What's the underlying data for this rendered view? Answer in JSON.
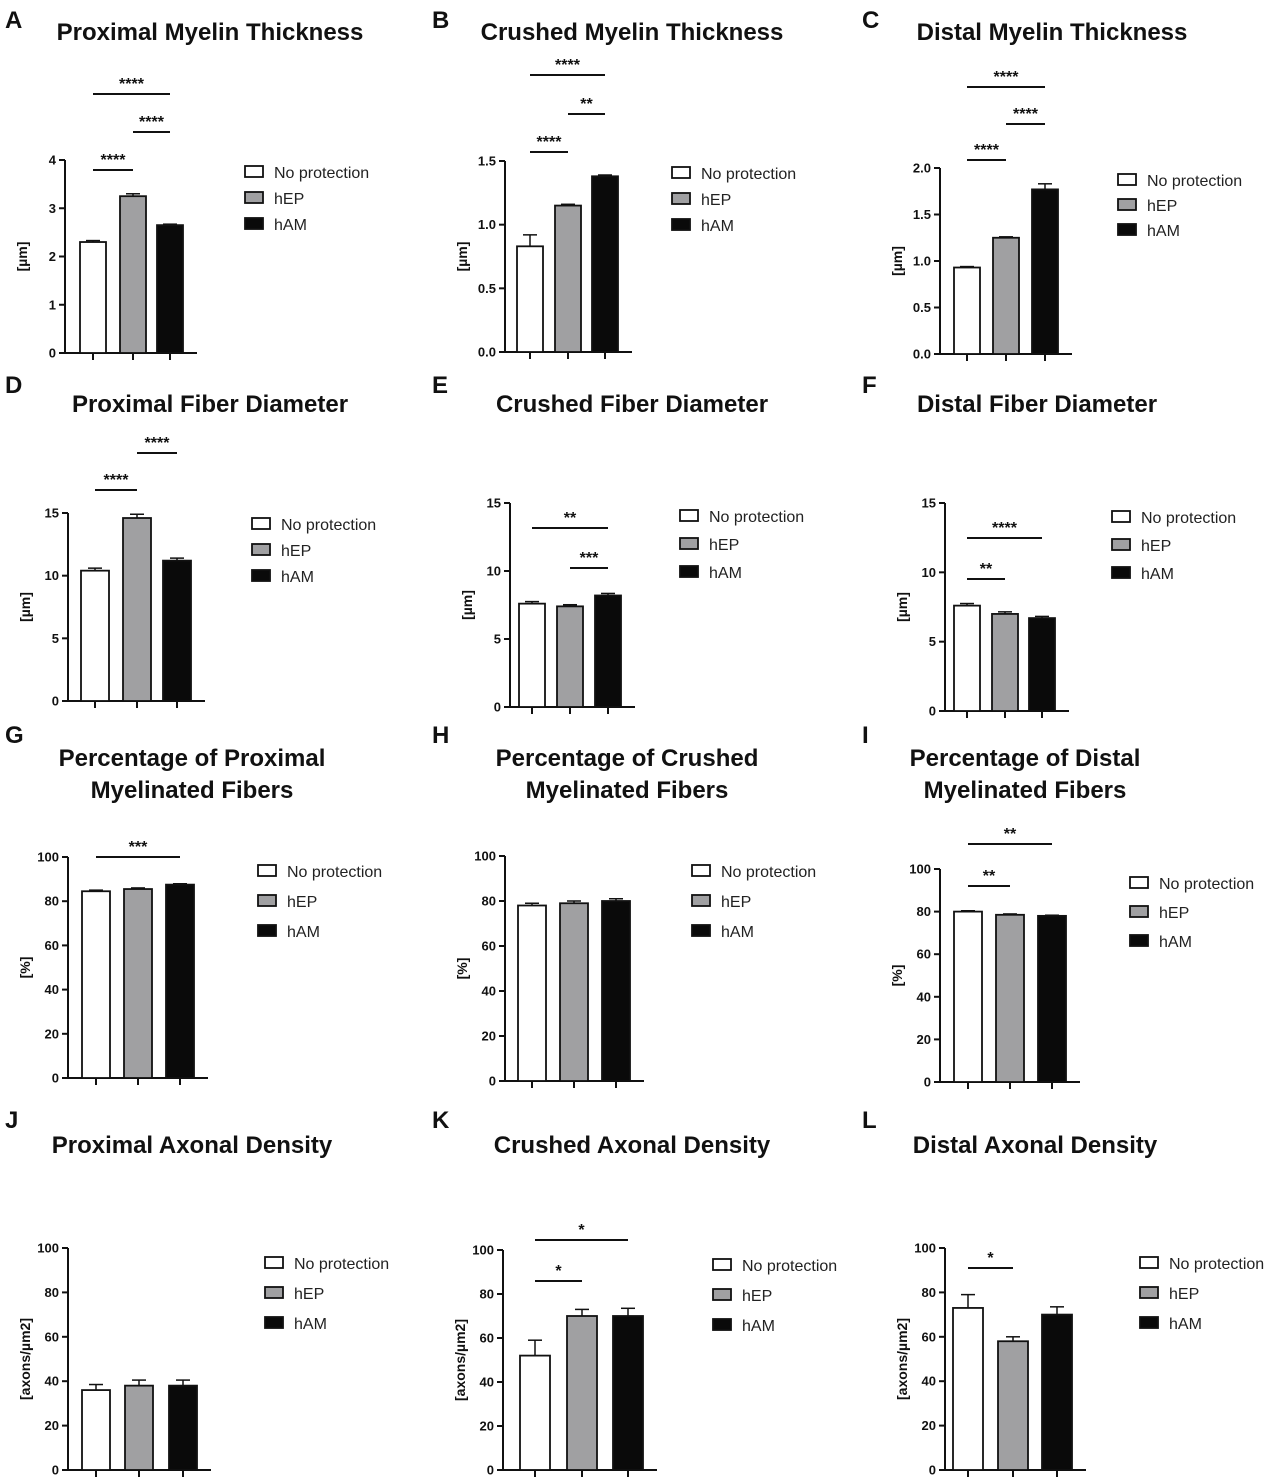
{
  "chart_data": [
    {
      "letter": "A",
      "type": "bar",
      "title": [
        "Proximal Myelin Thickness"
      ],
      "ylabel": "[µm]",
      "ylim": [
        0,
        4
      ],
      "yticks": [
        "0",
        "1",
        "2",
        "3",
        "4"
      ],
      "categories": [
        "No protection",
        "hEP",
        "hAM"
      ],
      "values": [
        2.3,
        3.25,
        2.65
      ],
      "errors": [
        0.03,
        0.05,
        0.02
      ],
      "significance": [
        [
          0,
          1,
          "****"
        ],
        [
          1,
          2,
          "****"
        ],
        [
          0,
          2,
          "****"
        ]
      ]
    },
    {
      "letter": "B",
      "type": "bar",
      "title": [
        "Crushed Myelin Thickness"
      ],
      "ylabel": "[µm]",
      "ylim": [
        0,
        1.5
      ],
      "yticks": [
        "0.0",
        "0.5",
        "1.0",
        "1.5"
      ],
      "categories": [
        "No protection",
        "hEP",
        "hAM"
      ],
      "values": [
        0.83,
        1.15,
        1.38
      ],
      "errors": [
        0.09,
        0.01,
        0.01
      ],
      "significance": [
        [
          0,
          1,
          "****"
        ],
        [
          1,
          2,
          "**"
        ],
        [
          0,
          2,
          "****"
        ]
      ]
    },
    {
      "letter": "C",
      "type": "bar",
      "title": [
        "Distal Myelin Thickness"
      ],
      "ylabel": "[µm]",
      "ylim": [
        0,
        2
      ],
      "yticks": [
        "0.0",
        "0.5",
        "1.0",
        "1.5",
        "2.0"
      ],
      "categories": [
        "No protection",
        "hEP",
        "hAM"
      ],
      "values": [
        0.93,
        1.25,
        1.77
      ],
      "errors": [
        0.01,
        0.01,
        0.06
      ],
      "significance": [
        [
          0,
          1,
          "****"
        ],
        [
          1,
          2,
          "****"
        ],
        [
          0,
          2,
          "****"
        ]
      ]
    },
    {
      "letter": "D",
      "type": "bar",
      "title": [
        "Proximal Fiber Diameter"
      ],
      "ylabel": "[µm]",
      "ylim": [
        0,
        15
      ],
      "yticks": [
        "0",
        "5",
        "10",
        "15"
      ],
      "categories": [
        "No protection",
        "hEP",
        "hAM"
      ],
      "values": [
        10.4,
        14.6,
        11.2
      ],
      "errors": [
        0.2,
        0.3,
        0.2
      ],
      "significance": [
        [
          0,
          1,
          "****"
        ],
        [
          1,
          2,
          "****"
        ]
      ]
    },
    {
      "letter": "E",
      "type": "bar",
      "title": [
        "Crushed Fiber Diameter"
      ],
      "ylabel": "[µm]",
      "ylim": [
        0,
        15
      ],
      "yticks": [
        "0",
        "5",
        "10",
        "15"
      ],
      "categories": [
        "No protection",
        "hEP",
        "hAM"
      ],
      "values": [
        7.6,
        7.4,
        8.2
      ],
      "errors": [
        0.15,
        0.12,
        0.15
      ],
      "significance": [
        [
          0,
          2,
          "**"
        ],
        [
          1,
          2,
          "***"
        ]
      ]
    },
    {
      "letter": "F",
      "type": "bar",
      "title": [
        "Distal Fiber Diameter"
      ],
      "ylabel": "[µm]",
      "ylim": [
        0,
        15
      ],
      "yticks": [
        "0",
        "5",
        "10",
        "15"
      ],
      "categories": [
        "No protection",
        "hEP",
        "hAM"
      ],
      "values": [
        7.6,
        7.0,
        6.7
      ],
      "errors": [
        0.15,
        0.15,
        0.12
      ],
      "significance": [
        [
          0,
          1,
          "**"
        ],
        [
          0,
          2,
          "****"
        ]
      ]
    },
    {
      "letter": "G",
      "type": "bar",
      "title": [
        "Percentage of Proximal",
        "Myelinated Fibers"
      ],
      "ylabel": "[%]",
      "ylim": [
        0,
        100
      ],
      "yticks": [
        "0",
        "20",
        "40",
        "60",
        "80",
        "100"
      ],
      "categories": [
        "No protection",
        "hEP",
        "hAM"
      ],
      "values": [
        84.5,
        85.5,
        87.5
      ],
      "errors": [
        0.5,
        0.5,
        0.4
      ],
      "significance": [
        [
          0,
          2,
          "***"
        ]
      ]
    },
    {
      "letter": "H",
      "type": "bar",
      "title": [
        "Percentage of Crushed",
        "Myelinated Fibers"
      ],
      "ylabel": "[%]",
      "ylim": [
        0,
        100
      ],
      "yticks": [
        "0",
        "20",
        "40",
        "60",
        "80",
        "100"
      ],
      "categories": [
        "No protection",
        "hEP",
        "hAM"
      ],
      "values": [
        78,
        79,
        80
      ],
      "errors": [
        1,
        1,
        1
      ],
      "significance": []
    },
    {
      "letter": "I",
      "type": "bar",
      "title": [
        "Percentage of Distal",
        "Myelinated Fibers"
      ],
      "ylabel": "[%]",
      "ylim": [
        0,
        100
      ],
      "yticks": [
        "0",
        "20",
        "40",
        "60",
        "80",
        "100"
      ],
      "categories": [
        "No protection",
        "hEP",
        "hAM"
      ],
      "values": [
        80,
        78.5,
        78
      ],
      "errors": [
        0.4,
        0.4,
        0.3
      ],
      "significance": [
        [
          0,
          1,
          "**"
        ],
        [
          0,
          2,
          "**"
        ]
      ]
    },
    {
      "letter": "J",
      "type": "bar",
      "title": [
        "Proximal Axonal Density"
      ],
      "ylabel": "[axons/µm2]",
      "ylim": [
        0,
        100
      ],
      "yticks": [
        "0",
        "20",
        "40",
        "60",
        "80",
        "100"
      ],
      "categories": [
        "No protection",
        "hEP",
        "hAM"
      ],
      "values": [
        36,
        38,
        38
      ],
      "errors": [
        2.5,
        2.5,
        2.5
      ],
      "significance": []
    },
    {
      "letter": "K",
      "type": "bar",
      "title": [
        "Crushed Axonal Density"
      ],
      "ylabel": "[axons/µm2]",
      "ylim": [
        0,
        100
      ],
      "yticks": [
        "0",
        "20",
        "40",
        "60",
        "80",
        "100"
      ],
      "categories": [
        "No protection",
        "hEP",
        "hAM"
      ],
      "values": [
        52,
        70,
        70
      ],
      "errors": [
        7,
        3,
        3.5
      ],
      "significance": [
        [
          0,
          1,
          "*"
        ],
        [
          0,
          2,
          "*"
        ]
      ]
    },
    {
      "letter": "L",
      "type": "bar",
      "title": [
        "Distal Axonal Density"
      ],
      "ylabel": "[axons/µm2]",
      "ylim": [
        0,
        100
      ],
      "yticks": [
        "0",
        "20",
        "40",
        "60",
        "80",
        "100"
      ],
      "categories": [
        "No protection",
        "hEP",
        "hAM"
      ],
      "values": [
        73,
        58,
        70
      ],
      "errors": [
        6,
        2,
        3.5
      ],
      "significance": [
        [
          0,
          1,
          "*"
        ]
      ]
    }
  ],
  "legend": {
    "placement": "right",
    "entries": [
      "No protection",
      "hEP",
      "hAM"
    ]
  },
  "colors": {
    "No protection": "#ffffff",
    "hEP": "#a0a0a2",
    "hAM": "#0a0a0a"
  }
}
